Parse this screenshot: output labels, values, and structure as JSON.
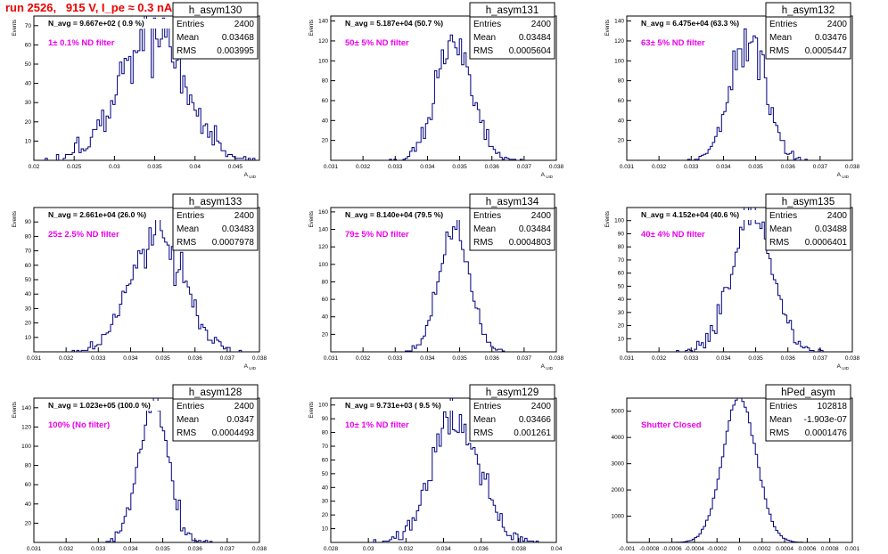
{
  "title": "run 2526,   915 V, I_pe ≈ 0.3 nA, 240 Hz",
  "colors": {
    "title": "#ee0000",
    "annotation": "#ee00ee",
    "histogram": "#000080",
    "frame": "#000000"
  },
  "chart_data": [
    {
      "type": "histogram",
      "name": "h_asym130",
      "stats": [
        [
          "Entries",
          "2400"
        ],
        [
          "Mean",
          "0.03468"
        ],
        [
          "RMS",
          "0.003995"
        ]
      ],
      "n_avg_label": "N_avg = 9.667e+02 ( 0.9 %)",
      "filter_label": "1± 0.1% ND filter",
      "ylabel": "Events",
      "xlabel": "A_UID",
      "xlim": [
        0.02,
        0.048
      ],
      "ylim": [
        0,
        75
      ],
      "xticks": [
        "0.02",
        "0.025",
        "0.03",
        "0.035",
        "0.04",
        "0.045"
      ],
      "xtick_values": [
        0.02,
        0.025,
        0.03,
        0.035,
        0.04,
        0.045
      ],
      "yticks": [
        10,
        20,
        30,
        40,
        50,
        60,
        70
      ],
      "mean": 0.03468,
      "rms": 0.003995,
      "entries": 2400,
      "bins": 100
    },
    {
      "type": "histogram",
      "name": "h_asym131",
      "stats": [
        [
          "Entries",
          "2400"
        ],
        [
          "Mean",
          "0.03484"
        ],
        [
          "RMS",
          "0.0005604"
        ]
      ],
      "n_avg_label": "N_avg = 5.187e+04 (50.7 %)",
      "filter_label": "50± 5% ND filter",
      "ylabel": "Events",
      "xlabel": "A_UID",
      "xlim": [
        0.031,
        0.038
      ],
      "ylim": [
        0,
        145
      ],
      "xticks": [
        "0.031",
        "0.032",
        "0.033",
        "0.034",
        "0.035",
        "0.036",
        "0.037",
        "0.038"
      ],
      "xtick_values": [
        0.031,
        0.032,
        0.033,
        0.034,
        0.035,
        0.036,
        0.037,
        0.038
      ],
      "yticks": [
        20,
        40,
        60,
        80,
        100,
        120,
        140
      ],
      "mean": 0.03484,
      "rms": 0.0005604,
      "entries": 2400,
      "bins": 100
    },
    {
      "type": "histogram",
      "name": "h_asym132",
      "stats": [
        [
          "Entries",
          "2400"
        ],
        [
          "Mean",
          "0.03476"
        ],
        [
          "RMS",
          "0.0005447"
        ]
      ],
      "n_avg_label": "N_avg = 6.475e+04 (63.3 %)",
      "filter_label": "63± 5% ND filter",
      "ylabel": "Events",
      "xlabel": "A_UID",
      "xlim": [
        0.031,
        0.038
      ],
      "ylim": [
        0,
        145
      ],
      "xticks": [
        "0.031",
        "0.032",
        "0.033",
        "0.034",
        "0.035",
        "0.036",
        "0.037",
        "0.038"
      ],
      "xtick_values": [
        0.031,
        0.032,
        0.033,
        0.034,
        0.035,
        0.036,
        0.037,
        0.038
      ],
      "yticks": [
        20,
        40,
        60,
        80,
        100,
        120,
        140
      ],
      "mean": 0.03476,
      "rms": 0.0005447,
      "entries": 2400,
      "bins": 100
    },
    {
      "type": "histogram",
      "name": "h_asym133",
      "stats": [
        [
          "Entries",
          "2400"
        ],
        [
          "Mean",
          "0.03483"
        ],
        [
          "RMS",
          "0.0007978"
        ]
      ],
      "n_avg_label": "N_avg = 2.661e+04 (26.0 %)",
      "filter_label": "25± 2.5% ND filter",
      "ylabel": "Events",
      "xlabel": "A_UID",
      "xlim": [
        0.031,
        0.038
      ],
      "ylim": [
        0,
        100
      ],
      "xticks": [
        "0.031",
        "0.032",
        "0.033",
        "0.034",
        "0.035",
        "0.036",
        "0.037",
        "0.038"
      ],
      "xtick_values": [
        0.031,
        0.032,
        0.033,
        0.034,
        0.035,
        0.036,
        0.037,
        0.038
      ],
      "yticks": [
        10,
        20,
        30,
        40,
        50,
        60,
        70,
        80,
        90
      ],
      "mean": 0.03483,
      "rms": 0.0007978,
      "entries": 2400,
      "bins": 100
    },
    {
      "type": "histogram",
      "name": "h_asym134",
      "stats": [
        [
          "Entries",
          "2400"
        ],
        [
          "Mean",
          "0.03484"
        ],
        [
          "RMS",
          "0.0004803"
        ]
      ],
      "n_avg_label": "N_avg = 8.140e+04 (79.5 %)",
      "filter_label": "79± 5% ND filter",
      "ylabel": "Events",
      "xlabel": "A_UID",
      "xlim": [
        0.031,
        0.038
      ],
      "ylim": [
        0,
        165
      ],
      "xticks": [
        "0.031",
        "0.032",
        "0.033",
        "0.034",
        "0.035",
        "0.036",
        "0.037",
        "0.038"
      ],
      "xtick_values": [
        0.031,
        0.032,
        0.033,
        0.034,
        0.035,
        0.036,
        0.037,
        0.038
      ],
      "yticks": [
        20,
        40,
        60,
        80,
        100,
        120,
        140,
        160
      ],
      "mean": 0.03484,
      "rms": 0.0004803,
      "entries": 2400,
      "bins": 100
    },
    {
      "type": "histogram",
      "name": "h_asym135",
      "stats": [
        [
          "Entries",
          "2400"
        ],
        [
          "Mean",
          "0.03488"
        ],
        [
          "RMS",
          "0.0006401"
        ]
      ],
      "n_avg_label": "N_avg = 4.152e+04 (40.6 %)",
      "filter_label": "40± 4% ND filter",
      "ylabel": "Events",
      "xlabel": "A_UID",
      "xlim": [
        0.031,
        0.038
      ],
      "ylim": [
        0,
        110
      ],
      "xticks": [
        "0.031",
        "0.032",
        "0.033",
        "0.034",
        "0.035",
        "0.036",
        "0.037",
        "0.038"
      ],
      "xtick_values": [
        0.031,
        0.032,
        0.033,
        0.034,
        0.035,
        0.036,
        0.037,
        0.038
      ],
      "yticks": [
        10,
        20,
        30,
        40,
        50,
        60,
        70,
        80,
        90,
        100
      ],
      "mean": 0.03488,
      "rms": 0.0006401,
      "entries": 2400,
      "bins": 100
    },
    {
      "type": "histogram",
      "name": "h_asym128",
      "stats": [
        [
          "Entries",
          "2400"
        ],
        [
          "Mean",
          "0.0347"
        ],
        [
          "RMS",
          "0.0004493"
        ]
      ],
      "n_avg_label": "N_avg = 1.023e+05 (100.0 %)",
      "filter_label": "100% (No filter)",
      "ylabel": "Events",
      "xlabel": "A_UID",
      "xlim": [
        0.031,
        0.038
      ],
      "ylim": [
        0,
        150
      ],
      "xticks": [
        "0.031",
        "0.032",
        "0.033",
        "0.034",
        "0.035",
        "0.036",
        "0.037",
        "0.038"
      ],
      "xtick_values": [
        0.031,
        0.032,
        0.033,
        0.034,
        0.035,
        0.036,
        0.037,
        0.038
      ],
      "yticks": [
        20,
        40,
        60,
        80,
        100,
        120,
        140
      ],
      "mean": 0.0347,
      "rms": 0.0004493,
      "entries": 2400,
      "bins": 100
    },
    {
      "type": "histogram",
      "name": "h_asym129",
      "stats": [
        [
          "Entries",
          "2400"
        ],
        [
          "Mean",
          "0.03466"
        ],
        [
          "RMS",
          "0.001261"
        ]
      ],
      "n_avg_label": "N_avg = 9.731e+03 ( 9.5 %)",
      "filter_label": "10± 1% ND filter",
      "ylabel": "Events",
      "xlabel": "A_UID",
      "xlim": [
        0.028,
        0.04
      ],
      "ylim": [
        0,
        105
      ],
      "xticks": [
        "0.028",
        "0.03",
        "0.032",
        "0.034",
        "0.036",
        "0.038",
        "0.04"
      ],
      "xtick_values": [
        0.028,
        0.03,
        0.032,
        0.034,
        0.036,
        0.038,
        0.04
      ],
      "yticks": [
        10,
        20,
        30,
        40,
        50,
        60,
        70,
        80,
        90,
        100
      ],
      "mean": 0.03466,
      "rms": 0.001261,
      "entries": 2400,
      "bins": 100
    },
    {
      "type": "histogram",
      "name": "hPed_asym",
      "stats": [
        [
          "Entries",
          "102818"
        ],
        [
          "Mean",
          "-1.903e-07"
        ],
        [
          "RMS",
          "0.0001476"
        ]
      ],
      "n_avg_label": "",
      "filter_label": "Shutter Closed",
      "ylabel": "",
      "xlabel": "",
      "xlim": [
        -0.001,
        0.001
      ],
      "ylim": [
        0,
        5500
      ],
      "xticks": [
        "-0.001",
        "-0.0008",
        "-0.0006",
        "-0.0004",
        "-0.0002",
        "0",
        "0.0002",
        "0.0004",
        "0.0006",
        "0.0008",
        "0.001"
      ],
      "xtick_values": [
        -0.001,
        -0.0008,
        -0.0006,
        -0.0004,
        -0.0002,
        0,
        0.0002,
        0.0004,
        0.0006,
        0.0008,
        0.001
      ],
      "yticks": [
        1000,
        2000,
        3000,
        4000,
        5000
      ],
      "mean": 0.0,
      "rms": 0.0001476,
      "entries": 102818,
      "bins": 100
    }
  ]
}
